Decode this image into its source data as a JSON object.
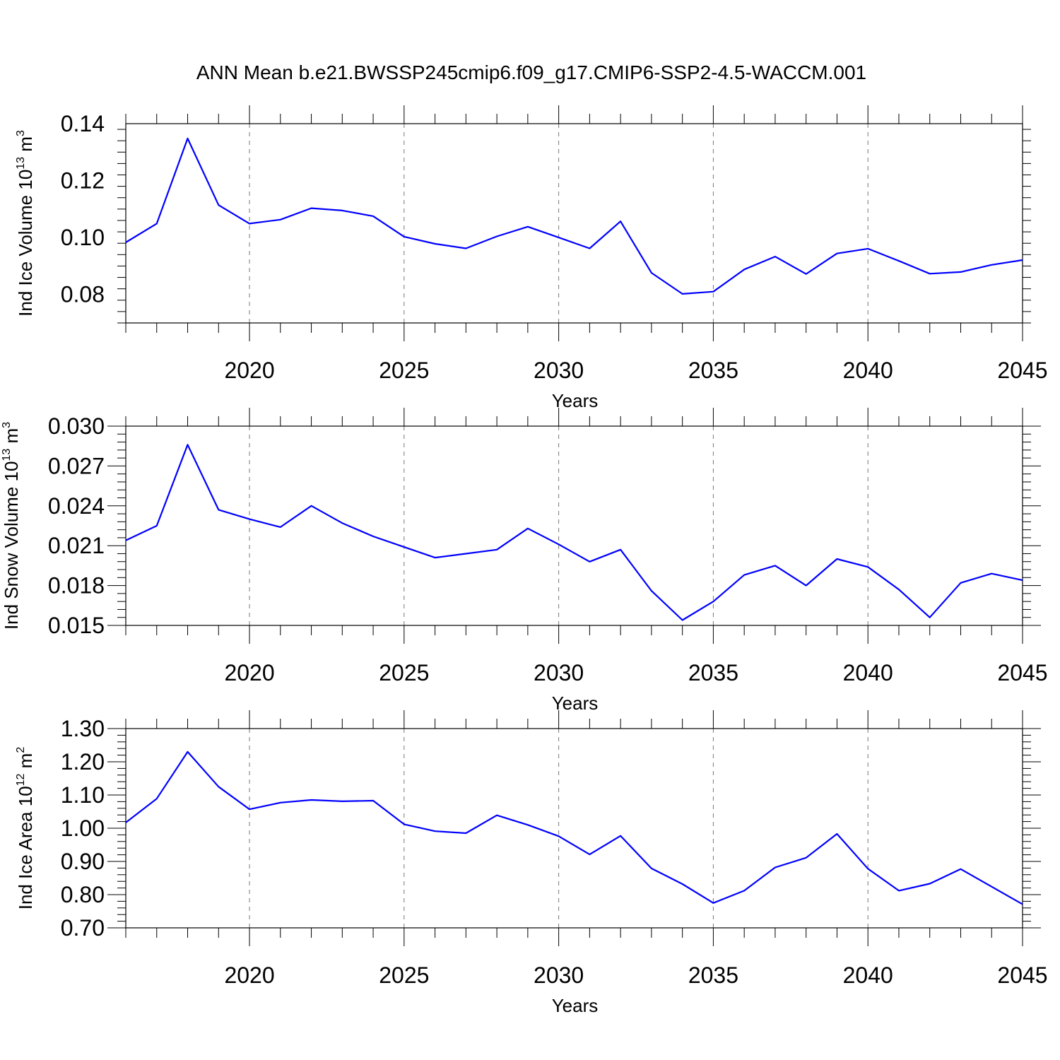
{
  "title": "ANN Mean b.e21.BWSSP245cmip6.f09_g17.CMIP6-SSP2-4.5-WACCM.001",
  "colors": {
    "series": "#0000ff",
    "axes": "#000000",
    "grid": "#777777"
  },
  "chart_data": [
    {
      "type": "line",
      "title": "ANN Mean b.e21.BWSSP245cmip6.f09_g17.CMIP6-SSP2-4.5-WACCM.001",
      "xlabel": "Years",
      "ylabel": {
        "text": "Ind Ice Volume 10",
        "exp": "13",
        "unit": " m",
        "unit_exp": "3"
      },
      "xlim": [
        2016,
        2045
      ],
      "ylim": [
        0.07,
        0.14
      ],
      "xticks": [
        2020,
        2025,
        2030,
        2035,
        2040,
        2045
      ],
      "xtick_labels": [
        "2020",
        "2025",
        "2030",
        "2035",
        "2040",
        "2045"
      ],
      "yticks": [
        0.08,
        0.1,
        0.12,
        0.14
      ],
      "ytick_labels": [
        "0.08",
        "0.10",
        "0.12",
        "0.14"
      ],
      "grid": "dashed vertical at labeled years",
      "x": [
        2016,
        2017,
        2018,
        2019,
        2020,
        2021,
        2022,
        2023,
        2024,
        2025,
        2026,
        2027,
        2028,
        2029,
        2030,
        2031,
        2032,
        2033,
        2034,
        2035,
        2036,
        2037,
        2038,
        2039,
        2040,
        2041,
        2042,
        2043,
        2044,
        2045
      ],
      "series": [
        {
          "values": [
            0.0983,
            0.1049,
            0.1348,
            0.1114,
            0.1049,
            0.1063,
            0.1103,
            0.1095,
            0.1075,
            0.1003,
            0.0978,
            0.0962,
            0.1004,
            0.1038,
            0.1,
            0.0962,
            0.1057,
            0.0876,
            0.0802,
            0.081,
            0.0888,
            0.0933,
            0.0872,
            0.0944,
            0.0961,
            0.0918,
            0.0873,
            0.0879,
            0.0904,
            0.0921
          ]
        }
      ]
    },
    {
      "type": "line",
      "xlabel": "Years",
      "ylabel": {
        "text": "Ind Snow Volume 10",
        "exp": "13",
        "unit": " m",
        "unit_exp": "3"
      },
      "xlim": [
        2016,
        2045
      ],
      "ylim": [
        0.015,
        0.03
      ],
      "xticks": [
        2020,
        2025,
        2030,
        2035,
        2040,
        2045
      ],
      "xtick_labels": [
        "2020",
        "2025",
        "2030",
        "2035",
        "2040",
        "2045"
      ],
      "yticks": [
        0.015,
        0.018,
        0.021,
        0.024,
        0.027,
        0.03
      ],
      "ytick_labels": [
        "0.015",
        "0.018",
        "0.021",
        "0.024",
        "0.027",
        "0.030"
      ],
      "grid": "dashed vertical at labeled years",
      "x": [
        2016,
        2017,
        2018,
        2019,
        2020,
        2021,
        2022,
        2023,
        2024,
        2025,
        2026,
        2027,
        2028,
        2029,
        2030,
        2031,
        2032,
        2033,
        2034,
        2035,
        2036,
        2037,
        2038,
        2039,
        2040,
        2041,
        2042,
        2043,
        2044,
        2045
      ],
      "series": [
        {
          "values": [
            0.0214,
            0.0225,
            0.0286,
            0.0237,
            0.023,
            0.0224,
            0.024,
            0.0227,
            0.0217,
            0.0209,
            0.0201,
            0.0204,
            0.0207,
            0.0223,
            0.0211,
            0.0198,
            0.0207,
            0.0176,
            0.0154,
            0.0168,
            0.0188,
            0.0195,
            0.018,
            0.02,
            0.0194,
            0.0177,
            0.0156,
            0.0182,
            0.0189,
            0.0184
          ]
        }
      ]
    },
    {
      "type": "line",
      "xlabel": "Years",
      "ylabel": {
        "text": "Ind Ice Area 10",
        "exp": "12",
        "unit": " m",
        "unit_exp": "2"
      },
      "xlim": [
        2016,
        2045
      ],
      "ylim": [
        0.7,
        1.3
      ],
      "xticks": [
        2020,
        2025,
        2030,
        2035,
        2040,
        2045
      ],
      "xtick_labels": [
        "2020",
        "2025",
        "2030",
        "2035",
        "2040",
        "2045"
      ],
      "yticks": [
        0.7,
        0.8,
        0.9,
        1.0,
        1.1,
        1.2,
        1.3
      ],
      "ytick_labels": [
        "0.70",
        "0.80",
        "0.90",
        "1.00",
        "1.10",
        "1.20",
        "1.30"
      ],
      "grid": "dashed vertical at labeled years",
      "x": [
        2016,
        2017,
        2018,
        2019,
        2020,
        2021,
        2022,
        2023,
        2024,
        2025,
        2026,
        2027,
        2028,
        2029,
        2030,
        2031,
        2032,
        2033,
        2034,
        2035,
        2036,
        2037,
        2038,
        2039,
        2040,
        2041,
        2042,
        2043,
        2044,
        2045
      ],
      "series": [
        {
          "values": [
            1.017,
            1.089,
            1.23,
            1.125,
            1.057,
            1.077,
            1.085,
            1.081,
            1.083,
            1.012,
            0.991,
            0.985,
            1.039,
            1.01,
            0.976,
            0.921,
            0.977,
            0.879,
            0.832,
            0.775,
            0.812,
            0.882,
            0.911,
            0.983,
            0.878,
            0.812,
            0.833,
            0.877,
            0.824,
            0.771
          ]
        }
      ]
    }
  ]
}
